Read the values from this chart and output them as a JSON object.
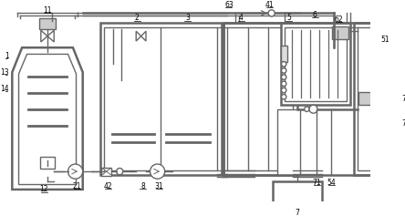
{
  "lc": "#666666",
  "lw": 1.0,
  "tlw": 1.8
}
